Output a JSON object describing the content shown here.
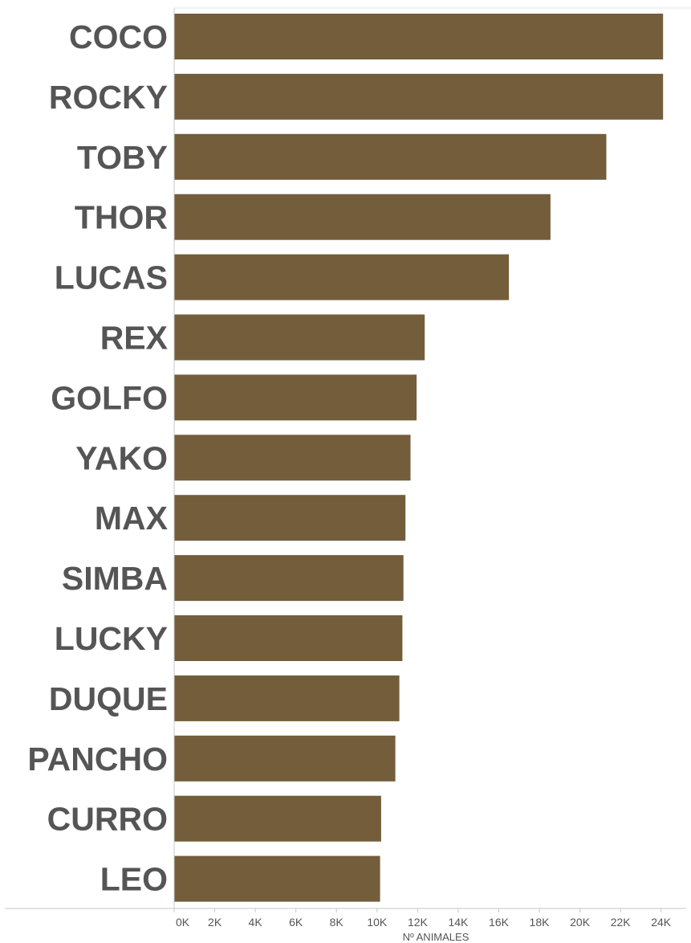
{
  "chart_data": {
    "type": "bar",
    "orientation": "horizontal",
    "categories": [
      "COCO",
      "ROCKY",
      "TOBY",
      "THOR",
      "LUCAS",
      "REX",
      "GOLFO",
      "YAKO",
      "MAX",
      "SIMBA",
      "LUCKY",
      "DUQUE",
      "PANCHO",
      "CURRO",
      "LEO"
    ],
    "values": [
      24100,
      24100,
      21300,
      18550,
      16500,
      12350,
      11950,
      11650,
      11400,
      11300,
      11250,
      11100,
      10900,
      10200,
      10150
    ],
    "xlabel": "Nº ANIMALES",
    "ylabel": "",
    "xlim": [
      0,
      25000
    ],
    "xticks": [
      0,
      2000,
      4000,
      6000,
      8000,
      10000,
      12000,
      14000,
      16000,
      18000,
      20000,
      22000,
      24000
    ],
    "xtick_labels": [
      "0K",
      "2K",
      "4K",
      "6K",
      "8K",
      "10K",
      "12K",
      "14K",
      "16K",
      "18K",
      "20K",
      "22K",
      "24K"
    ],
    "grid": false,
    "legend": "none"
  },
  "colors": {
    "bar": "#735d3b",
    "text": "#555555",
    "axis": "#c8c8c8"
  }
}
